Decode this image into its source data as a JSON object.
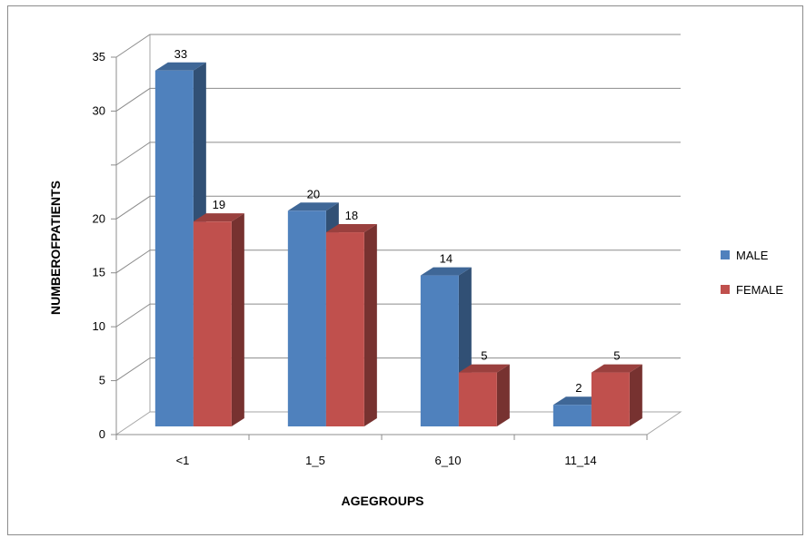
{
  "chart_data": {
    "type": "bar",
    "style": "3d-clustered-column",
    "categories": [
      "<1",
      "1_5",
      "6_10",
      "11_14"
    ],
    "series": [
      {
        "name": "MALE",
        "values": [
          33,
          20,
          14,
          2
        ],
        "color": "#4F81BD"
      },
      {
        "name": "FEMALE",
        "values": [
          19,
          18,
          5,
          5
        ],
        "color": "#C0504D"
      }
    ],
    "xlabel": "AGEGROUPS",
    "ylabel": "NUMBEROFPATIENTS",
    "ylim": [
      0,
      35
    ],
    "yticks": [
      0,
      5,
      10,
      15,
      20,
      30,
      35
    ],
    "grid": true,
    "legend": "right"
  }
}
